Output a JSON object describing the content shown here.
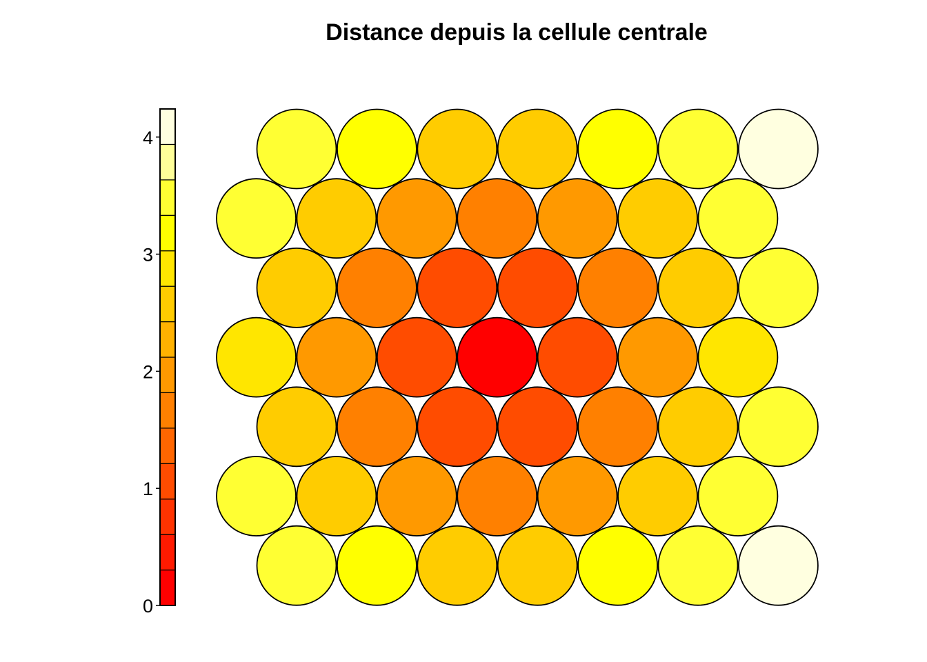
{
  "chart_data": {
    "type": "heatmap",
    "layout": "hexagonal-grid",
    "title": "Distance depuis la cellule centrale",
    "grid": false,
    "legend": "left colorbar",
    "colorbar": {
      "min": 0,
      "max": 4.24,
      "ticks": [
        0,
        1,
        2,
        3,
        4
      ],
      "tick_labels": [
        "0",
        "1",
        "2",
        "3",
        "4"
      ],
      "colors": [
        "#ff0000",
        "#ff1a00",
        "#ff3300",
        "#ff4c00",
        "#ff6600",
        "#ff8000",
        "#ff9900",
        "#ffb200",
        "#ffcc00",
        "#ffe600",
        "#ffff00",
        "#ffff33",
        "#ffff99",
        "#ffffe0"
      ]
    },
    "rows": [
      {
        "row": 1,
        "values": [
          3.61,
          3.04,
          2.65,
          2.65,
          3.04,
          3.61,
          4.36
        ]
      },
      {
        "row": 2,
        "values": [
          3.46,
          2.65,
          2.0,
          1.73,
          2.0,
          2.65,
          3.46
        ]
      },
      {
        "row": 3,
        "values": [
          2.65,
          1.73,
          1.0,
          1.0,
          1.73,
          2.65,
          3.61
        ]
      },
      {
        "row": 4,
        "values": [
          3.0,
          2.0,
          1.0,
          0.0,
          1.0,
          2.0,
          3.0
        ]
      },
      {
        "row": 5,
        "values": [
          2.65,
          1.73,
          1.0,
          1.0,
          1.73,
          2.65,
          3.61
        ]
      },
      {
        "row": 6,
        "values": [
          3.46,
          2.65,
          2.0,
          1.73,
          2.0,
          2.65,
          3.46
        ]
      },
      {
        "row": 7,
        "values": [
          3.61,
          3.04,
          2.65,
          2.65,
          3.04,
          3.61,
          4.36
        ]
      }
    ]
  }
}
